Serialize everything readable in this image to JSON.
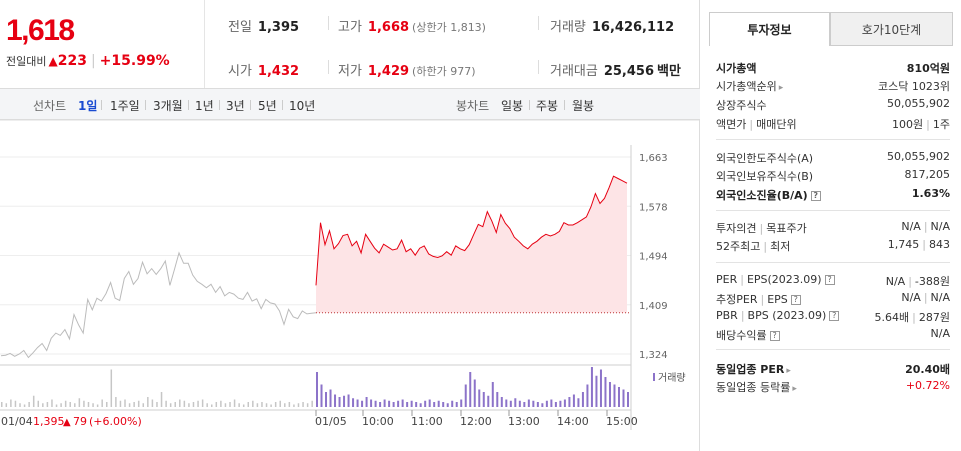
{
  "price": {
    "current": "1,618",
    "change_label": "전일대비",
    "change_arrow": "▲",
    "change": "223",
    "sep": "|",
    "change_pct": "+15.99%"
  },
  "quote": {
    "prev_close_label": "전일",
    "prev_close": "1,395",
    "high_label": "고가",
    "high": "1,668",
    "upper_limit": "(상한가 1,813)",
    "volume_label": "거래량",
    "volume": "16,426,112",
    "open_label": "시가",
    "open": "1,432",
    "low_label": "저가",
    "low": "1,429",
    "lower_limit": "(하한가 977)",
    "value_label": "거래대금",
    "value": "25,456",
    "value_unit": "백만"
  },
  "period_bar": {
    "line_label": "선차트",
    "line_options": [
      "1일",
      "1주일",
      "3개월",
      "1년",
      "3년",
      "5년",
      "10년"
    ],
    "selected": "1일",
    "candle_label": "봉차트",
    "candle_options": [
      "일봉",
      "주봉",
      "월봉"
    ]
  },
  "colors": {
    "up": "#e60012",
    "down": "#1a4bd1",
    "prev_line": "#bbbbbb",
    "fill": "#fde4e6",
    "volume": "#8c73c9"
  },
  "chart_data": {
    "type": "line",
    "yticks": [
      "1,663",
      "1,578",
      "1,494",
      "1,409",
      "1,324"
    ],
    "ylim": [
      1324,
      1663
    ],
    "prev_close": 1395,
    "volume_legend": "거래량",
    "xticks": [
      "01/04",
      "01/05",
      "10:00",
      "11:00",
      "12:00",
      "13:00",
      "14:00",
      "15:00"
    ],
    "prev_day_caption": {
      "date": "01/04",
      "close": "1,395",
      "arrow": "▲",
      "change": "79",
      "pct": "(+6.00%)"
    },
    "series": [
      {
        "day": "01/04",
        "values": [
          1321,
          1322,
          1325,
          1320,
          1324,
          1330,
          1318,
          1326,
          1335,
          1342,
          1330,
          1351,
          1360,
          1356,
          1366,
          1350,
          1392,
          1374,
          1360,
          1418,
          1400,
          1420,
          1415,
          1428,
          1447,
          1420,
          1416,
          1454,
          1466,
          1444,
          1454,
          1482,
          1462,
          1471,
          1461,
          1471,
          1484,
          1442,
          1470,
          1498,
          1480,
          1480,
          1460,
          1449,
          1444,
          1438,
          1444,
          1430,
          1440,
          1424,
          1430,
          1427,
          1420,
          1418,
          1430,
          1415,
          1419,
          1402,
          1418,
          1412,
          1410,
          1398,
          1375,
          1401,
          1388,
          1385,
          1398,
          1393,
          1394,
          1395
        ]
      },
      {
        "day": "01/05",
        "values": [
          1442,
          1550,
          1512,
          1536,
          1505,
          1514,
          1528,
          1530,
          1510,
          1518,
          1498,
          1530,
          1518,
          1506,
          1498,
          1513,
          1508,
          1503,
          1505,
          1520,
          1500,
          1505,
          1494,
          1506,
          1510,
          1496,
          1492,
          1490,
          1493,
          1500,
          1494,
          1510,
          1505,
          1502,
          1512,
          1530,
          1547,
          1543,
          1569,
          1553,
          1533,
          1564,
          1549,
          1540,
          1525,
          1518,
          1510,
          1505,
          1513,
          1518,
          1525,
          1530,
          1527,
          1530,
          1535,
          1550,
          1546,
          1546,
          1550,
          1555,
          1560,
          1577,
          1600,
          1583,
          1592,
          1610,
          1630,
          1626,
          1622,
          1618
        ]
      }
    ],
    "volume_prev": [
      4,
      3,
      6,
      5,
      3,
      2,
      4,
      9,
      5,
      3,
      4,
      6,
      2,
      3,
      5,
      4,
      3,
      7,
      5,
      4,
      3,
      2,
      6,
      4,
      30,
      8,
      5,
      6,
      3,
      4,
      5,
      3,
      8,
      6,
      4,
      12,
      5,
      3,
      4,
      6,
      5,
      3,
      4,
      5,
      6,
      3,
      2,
      4,
      5,
      3,
      4,
      6,
      3,
      2,
      4,
      5,
      3,
      4,
      3,
      2,
      4,
      5,
      3,
      4,
      2,
      3,
      4,
      3,
      5,
      4
    ],
    "volume_day": [
      28,
      18,
      12,
      14,
      10,
      8,
      9,
      10,
      7,
      6,
      5,
      8,
      6,
      5,
      4,
      6,
      5,
      4,
      5,
      6,
      4,
      5,
      4,
      3,
      5,
      6,
      4,
      5,
      4,
      3,
      5,
      4,
      6,
      18,
      28,
      22,
      14,
      12,
      9,
      20,
      12,
      8,
      6,
      5,
      7,
      5,
      4,
      6,
      5,
      4,
      3,
      5,
      6,
      4,
      5,
      6,
      8,
      10,
      7,
      12,
      18,
      32,
      25,
      30,
      24,
      20,
      18,
      16,
      14,
      12
    ]
  },
  "right_panel": {
    "tabs": [
      "투자정보",
      "호가10단계"
    ],
    "rows": [
      {
        "k": "시가총액",
        "v": "810억원",
        "bold": true
      },
      {
        "k": "시가총액순위",
        "v": "코스닥 1023위",
        "arrow": true
      },
      {
        "k": "상장주식수",
        "v": "50,055,902"
      },
      {
        "k": "액면가",
        "k2": "매매단위",
        "v": "100원",
        "v2": "1주"
      },
      {
        "k": "외국인한도주식수(A)",
        "v": "50,055,902"
      },
      {
        "k": "외국인보유주식수(B)",
        "v": "817,205"
      },
      {
        "k": "외국인소진율(B/A)",
        "v": "1.63%",
        "bold": true,
        "q": true
      },
      {
        "k": "투자의견",
        "k2": "목표주가",
        "v": "N/A",
        "v2": "N/A"
      },
      {
        "k": "52주최고",
        "k2": "최저",
        "v": "1,745",
        "v2": "843"
      },
      {
        "k": "PER",
        "k2": "EPS(2023.09)",
        "v": "N/A",
        "v2": "-388원",
        "q": true
      },
      {
        "k": "추정PER",
        "k2": "EPS",
        "v": "N/A",
        "v2": "N/A",
        "q": true
      },
      {
        "k": "PBR",
        "k2": "BPS (2023.09)",
        "v": "5.64배",
        "v2": "287원",
        "q": true
      },
      {
        "k": "배당수익률",
        "v": "N/A",
        "q": true
      },
      {
        "k": "동일업종 PER",
        "v": "20.40배",
        "bold": true,
        "arrow": true
      },
      {
        "k": "동일업종 등락률",
        "v": "+0.72%",
        "red": true,
        "arrow": true
      }
    ]
  }
}
